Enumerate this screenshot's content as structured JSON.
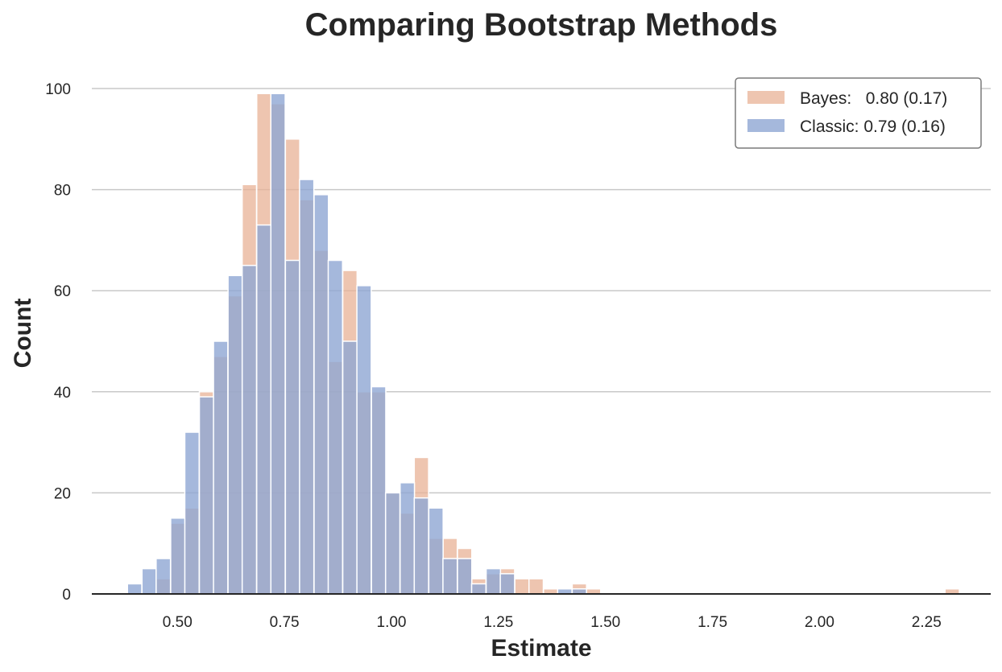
{
  "chart_data": {
    "type": "histogram",
    "title": "Comparing Bootstrap Methods",
    "xlabel": "Estimate",
    "ylabel": "Count",
    "xlim": [
      0.3,
      2.4
    ],
    "ylim": [
      0,
      100
    ],
    "xticks": [
      0.5,
      0.75,
      1.0,
      1.25,
      1.5,
      1.75,
      2.0,
      2.25
    ],
    "xtick_labels": [
      "0.50",
      "0.75",
      "1.00",
      "1.25",
      "1.50",
      "1.75",
      "2.00",
      "2.25"
    ],
    "yticks": [
      0,
      20,
      40,
      60,
      80,
      100
    ],
    "ytick_labels": [
      "0",
      "20",
      "40",
      "60",
      "80",
      "100"
    ],
    "grid": "horizontal",
    "legend_position": "top-right",
    "bin_width": 0.0335,
    "series": [
      {
        "name": "Bayes:   0.80 (0.17)",
        "color": "#e8b295",
        "bins": [
          {
            "x": 0.467,
            "count": 3
          },
          {
            "x": 0.501,
            "count": 14
          },
          {
            "x": 0.534,
            "count": 17
          },
          {
            "x": 0.568,
            "count": 40
          },
          {
            "x": 0.601,
            "count": 47
          },
          {
            "x": 0.635,
            "count": 59
          },
          {
            "x": 0.668,
            "count": 81
          },
          {
            "x": 0.702,
            "count": 99
          },
          {
            "x": 0.735,
            "count": 97
          },
          {
            "x": 0.769,
            "count": 90
          },
          {
            "x": 0.802,
            "count": 78
          },
          {
            "x": 0.836,
            "count": 68
          },
          {
            "x": 0.869,
            "count": 46
          },
          {
            "x": 0.903,
            "count": 64
          },
          {
            "x": 0.936,
            "count": 40
          },
          {
            "x": 0.97,
            "count": 40
          },
          {
            "x": 1.003,
            "count": 20
          },
          {
            "x": 1.037,
            "count": 16
          },
          {
            "x": 1.07,
            "count": 27
          },
          {
            "x": 1.104,
            "count": 11
          },
          {
            "x": 1.137,
            "count": 11
          },
          {
            "x": 1.171,
            "count": 9
          },
          {
            "x": 1.204,
            "count": 3
          },
          {
            "x": 1.238,
            "count": 4
          },
          {
            "x": 1.271,
            "count": 5
          },
          {
            "x": 1.305,
            "count": 3
          },
          {
            "x": 1.338,
            "count": 3
          },
          {
            "x": 1.372,
            "count": 1
          },
          {
            "x": 1.439,
            "count": 2
          },
          {
            "x": 1.472,
            "count": 1
          },
          {
            "x": 2.31,
            "count": 1
          }
        ]
      },
      {
        "name": "Classic: 0.79 (0.16)",
        "color": "#8ea6d3",
        "bins": [
          {
            "x": 0.4,
            "count": 2
          },
          {
            "x": 0.434,
            "count": 5
          },
          {
            "x": 0.467,
            "count": 7
          },
          {
            "x": 0.501,
            "count": 15
          },
          {
            "x": 0.534,
            "count": 32
          },
          {
            "x": 0.568,
            "count": 39
          },
          {
            "x": 0.601,
            "count": 50
          },
          {
            "x": 0.635,
            "count": 63
          },
          {
            "x": 0.668,
            "count": 65
          },
          {
            "x": 0.702,
            "count": 73
          },
          {
            "x": 0.735,
            "count": 99
          },
          {
            "x": 0.769,
            "count": 66
          },
          {
            "x": 0.802,
            "count": 82
          },
          {
            "x": 0.836,
            "count": 79
          },
          {
            "x": 0.869,
            "count": 66
          },
          {
            "x": 0.903,
            "count": 50
          },
          {
            "x": 0.936,
            "count": 61
          },
          {
            "x": 0.97,
            "count": 41
          },
          {
            "x": 1.003,
            "count": 20
          },
          {
            "x": 1.037,
            "count": 22
          },
          {
            "x": 1.07,
            "count": 19
          },
          {
            "x": 1.104,
            "count": 17
          },
          {
            "x": 1.137,
            "count": 7
          },
          {
            "x": 1.171,
            "count": 7
          },
          {
            "x": 1.204,
            "count": 2
          },
          {
            "x": 1.238,
            "count": 5
          },
          {
            "x": 1.271,
            "count": 4
          },
          {
            "x": 1.405,
            "count": 1
          },
          {
            "x": 1.439,
            "count": 1
          }
        ]
      }
    ]
  }
}
